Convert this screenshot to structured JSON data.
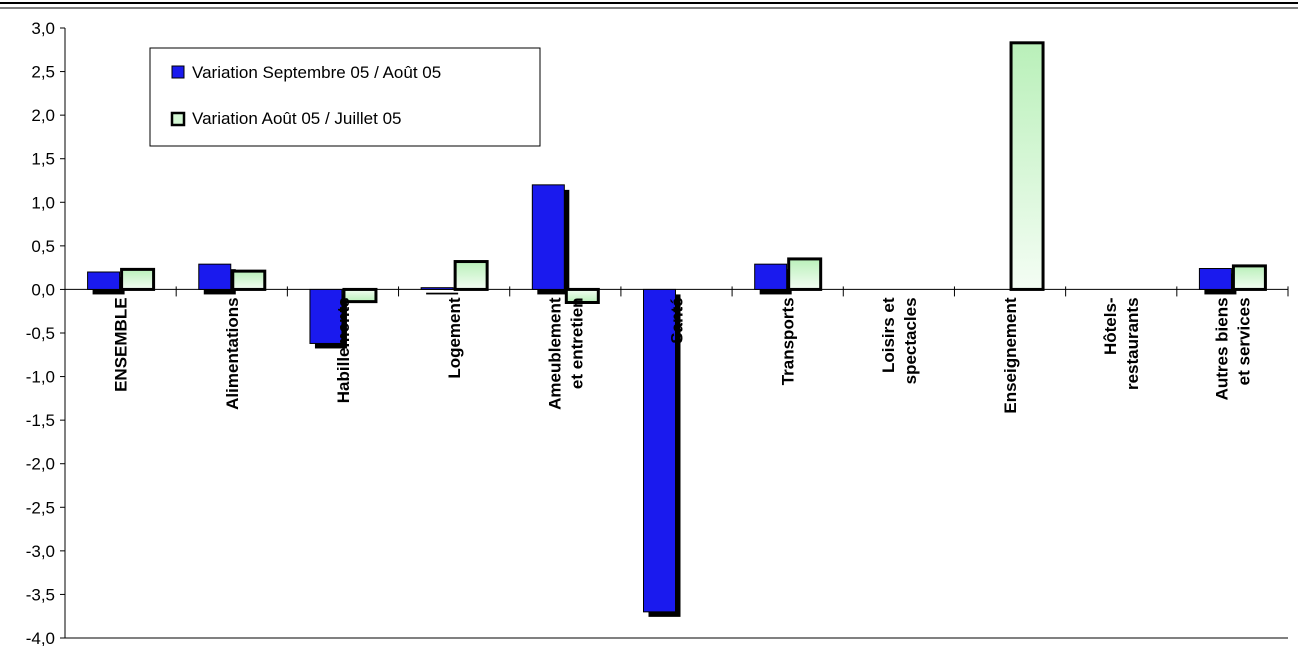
{
  "chart_data": {
    "type": "bar",
    "categories": [
      [
        "ENSEMBLE"
      ],
      [
        "Alimentations"
      ],
      [
        "Habillements"
      ],
      [
        "Logement"
      ],
      [
        "Ameublement",
        "et entretien"
      ],
      [
        "Santé"
      ],
      [
        "Transports"
      ],
      [
        "Loisirs et",
        "spectacles"
      ],
      [
        "Enseignement"
      ],
      [
        "Hôtels-",
        "restaurants"
      ],
      [
        "Autres biens",
        "et services"
      ]
    ],
    "series": [
      {
        "name": "Variation Septembre 05 / Août 05",
        "values": [
          0.2,
          0.29,
          -0.62,
          0.02,
          1.2,
          -3.7,
          0.29,
          0.0,
          0.0,
          0.0,
          0.24
        ],
        "color": "#1a1aee"
      },
      {
        "name": "Variation Août 05 / Juillet 05",
        "values": [
          0.23,
          0.21,
          -0.14,
          0.32,
          -0.15,
          0.0,
          0.35,
          0.0,
          2.83,
          0.0,
          0.27
        ],
        "color": "#d4f7d4"
      }
    ],
    "yticks": [
      "3,0",
      "2,5",
      "2,0",
      "1,5",
      "1,0",
      "0,5",
      "0,0",
      "-0,5",
      "-1,0",
      "-1,5",
      "-2,0",
      "-2,5",
      "-3,0",
      "-3,5",
      "-4,0"
    ],
    "ylim": [
      -4.0,
      3.0
    ],
    "grid": false,
    "legend_position": "top-left"
  }
}
